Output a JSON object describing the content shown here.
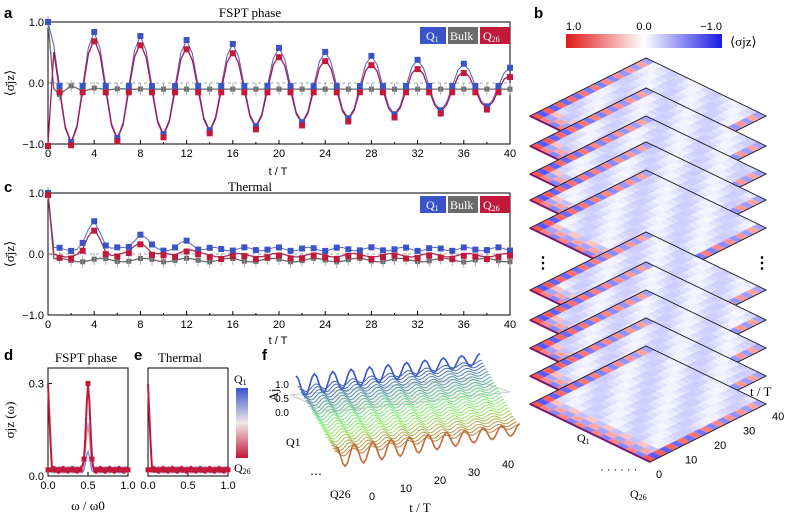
{
  "figure": {
    "panel_letters": [
      "a",
      "b",
      "c",
      "d",
      "e",
      "f"
    ],
    "legend_labels": {
      "q1": "Q",
      "q1_sub": "1",
      "bulk": "Bulk",
      "q26": "Q",
      "q26_sub": "26"
    },
    "colors": {
      "q1": "#3a54c8",
      "bulk": "#6b6b6b",
      "q26": "#c2183a",
      "fit_line_a": "#a3185a",
      "fit_line_c": "#8a4a8a"
    }
  },
  "chart_data": [
    {
      "id": "a",
      "type": "scatter",
      "title": "FSPT phase",
      "xlabel": "t / T",
      "ylabel": "⟨σ̄jz⟩",
      "xlim": [
        0,
        40
      ],
      "ylim": [
        -1.0,
        1.0
      ],
      "xticks": [
        "0",
        "4",
        "8",
        "12",
        "16",
        "20",
        "24",
        "28",
        "32",
        "36",
        "40"
      ],
      "yticks": [
        "−1.0",
        "0.0",
        "1.0"
      ],
      "series": [
        {
          "name": "Q1",
          "color": "#3a54c8",
          "amplitude_start": 0.95,
          "amplitude_end": 0.3,
          "period": 4
        },
        {
          "name": "Bulk",
          "color": "#6b6b6b",
          "mean": -0.1
        },
        {
          "name": "Q26",
          "color": "#c2183a",
          "amplitude_start": 0.9,
          "amplitude_end": 0.25,
          "period": 4
        }
      ]
    },
    {
      "id": "c",
      "type": "scatter",
      "title": "Thermal",
      "xlabel": "t / T",
      "ylabel": "⟨σ̄jz⟩",
      "xlim": [
        0,
        40
      ],
      "ylim": [
        -1.0,
        1.0
      ],
      "xticks": [
        "0",
        "4",
        "8",
        "12",
        "16",
        "20",
        "24",
        "28",
        "32",
        "36",
        "40"
      ],
      "yticks": [
        "−1.0",
        "0.0",
        "1.0"
      ],
      "series": [
        {
          "name": "Q1",
          "color": "#3a54c8",
          "level": 0.08
        },
        {
          "name": "Bulk",
          "color": "#6b6b6b",
          "level": -0.1
        },
        {
          "name": "Q26",
          "color": "#c2183a",
          "level": -0.02
        }
      ],
      "peaks": [
        {
          "t": 4,
          "value": 0.45
        },
        {
          "t": 8,
          "value": 0.25
        },
        {
          "t": 12,
          "value": 0.12
        }
      ]
    },
    {
      "id": "d",
      "type": "line",
      "title": "FSPT phase",
      "xlabel": "ω / ω0",
      "ylabel": "σjz (ω)",
      "xlim": [
        0,
        1.0
      ],
      "ylim": [
        0,
        0.35
      ],
      "xticks": [
        "0.0",
        "0.5",
        "1.0"
      ],
      "yticks": [
        "0.0",
        "0.3"
      ],
      "peak": {
        "x": 0.5,
        "value": 0.28
      }
    },
    {
      "id": "e",
      "type": "line",
      "title": "Thermal",
      "xlabel": "",
      "xlim": [
        0,
        1.0
      ],
      "xticks": [
        "0.0",
        "0.5",
        "1.0"
      ]
    },
    {
      "id": "f",
      "type": "area",
      "ylabel": "Aj",
      "xlabel": "t / T",
      "zticks": [
        "0.0",
        "0.5",
        "1.0"
      ],
      "xticks": [
        "0",
        "10",
        "20",
        "30",
        "40"
      ],
      "qubit_labels": [
        "Q1",
        "Q26"
      ]
    },
    {
      "id": "b",
      "type": "heatmap",
      "colorbar_ticks": [
        "1.0",
        "0.0",
        "−1.0"
      ],
      "colorbar_label": "⟨σjz⟩",
      "axis_label_t": "t / T",
      "t_ticks": [
        "0",
        "10",
        "20",
        "30",
        "40"
      ],
      "qubit_labels": [
        "Q1",
        "Q26"
      ],
      "layers": 10
    }
  ]
}
